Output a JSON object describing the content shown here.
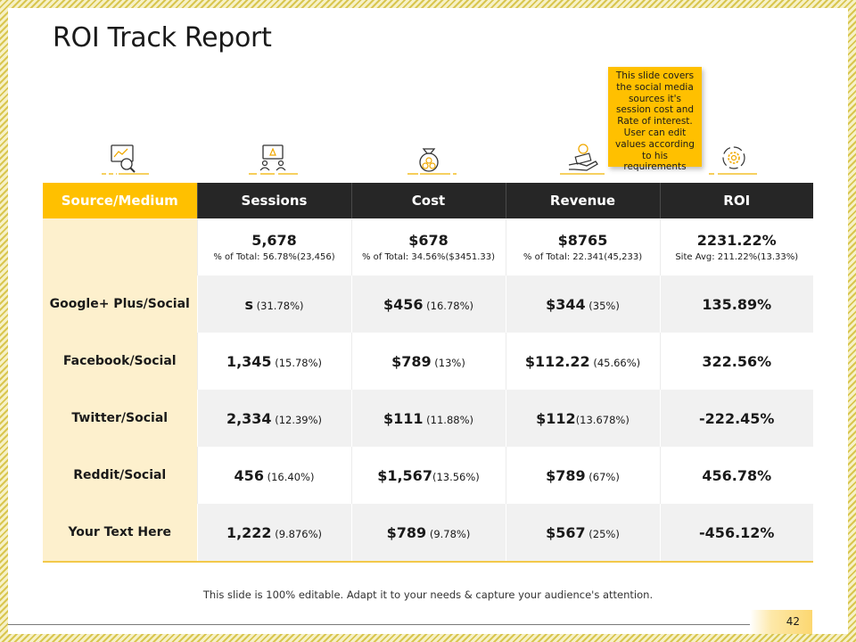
{
  "slide": {
    "title": "ROI Track Report",
    "callout": "This slide covers the social media sources it's session cost and Rate of interest. User can edit values according to his requirements",
    "footer": "This slide is 100% editable. Adapt it to your needs & capture your audience's attention.",
    "page_number": "42"
  },
  "colors": {
    "accent": "#ffc000",
    "header_dark": "#262626",
    "source_column": "#fdf0cd",
    "row_grey": "#f1f1f1"
  },
  "icons": [
    "analytics-icon",
    "presentation-icon",
    "money-bag-icon",
    "hand-money-icon",
    "gear-cycle-icon"
  ],
  "table": {
    "headers": [
      "Source/Medium",
      "Sessions",
      "Cost",
      "Revenue",
      "ROI"
    ],
    "totals": {
      "source": "",
      "sessions": {
        "main": "5,678",
        "sub": "% of Total: 56.78%(23,456)"
      },
      "cost": {
        "main": "$678",
        "sub": "% of Total: 34.56%($3451.33)"
      },
      "revenue": {
        "main": "$8765",
        "sub": "% of Total: 22.341(45,233)"
      },
      "roi": {
        "main": "2231.22%",
        "sub": "Site Avg: 211.22%(13.33%)"
      }
    },
    "rows": [
      {
        "source": "Google+ Plus/Social",
        "sessions": {
          "main": "s",
          "pct": " (31.78%)"
        },
        "cost": {
          "main": "$456",
          "pct": " (16.78%)"
        },
        "revenue": {
          "main": "$344",
          "pct": " (35%)"
        },
        "roi": "135.89%"
      },
      {
        "source": "Facebook/Social",
        "sessions": {
          "main": "1,345",
          "pct": " (15.78%)"
        },
        "cost": {
          "main": "$789",
          "pct": " (13%)"
        },
        "revenue": {
          "main": "$112.22",
          "pct": " (45.66%)"
        },
        "roi": "322.56%"
      },
      {
        "source": "Twitter/Social",
        "sessions": {
          "main": "2,334",
          "pct": " (12.39%)"
        },
        "cost": {
          "main": "$111",
          "pct": " (11.88%)"
        },
        "revenue": {
          "main": "$112",
          "pct": "(13.678%)"
        },
        "roi": "-222.45%"
      },
      {
        "source": "Reddit/Social",
        "sessions": {
          "main": "456",
          "pct": " (16.40%)"
        },
        "cost": {
          "main": "$1,567",
          "pct": "(13.56%)"
        },
        "revenue": {
          "main": "$789",
          "pct": " (67%)"
        },
        "roi": "456.78%"
      },
      {
        "source": "Your Text Here",
        "sessions": {
          "main": "1,222",
          "pct": " (9.876%)"
        },
        "cost": {
          "main": "$789",
          "pct": " (9.78%)"
        },
        "revenue": {
          "main": "$567",
          "pct": " (25%)"
        },
        "roi": "-456.12%"
      }
    ]
  }
}
